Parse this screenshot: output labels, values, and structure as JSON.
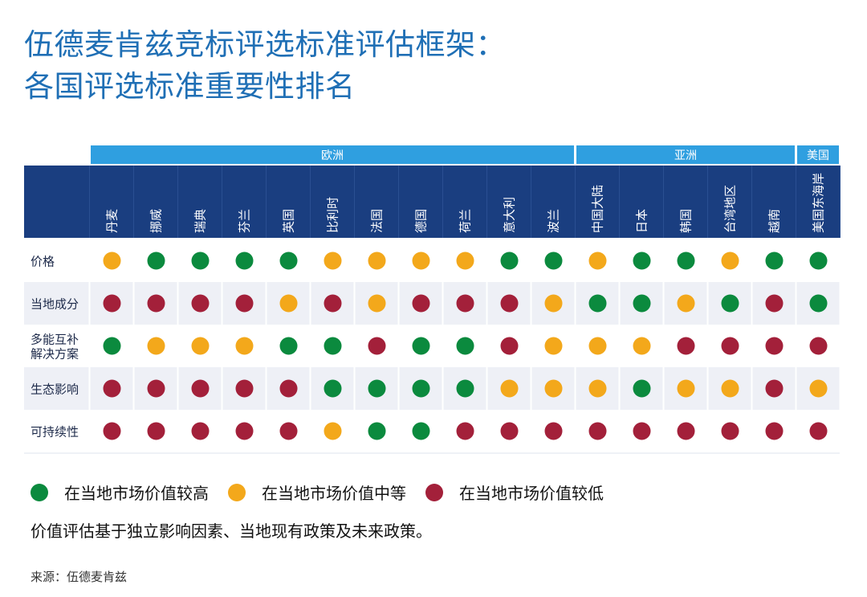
{
  "title": {
    "line1": "伍德麦肯兹竞标评选标准评估框架：",
    "line2": "各国评选标准重要性排名"
  },
  "colors": {
    "high": "#0b8a3e",
    "mid": "#f3a81b",
    "low": "#a3203a",
    "region_bar": "#2f9fe0",
    "header_bg": "#1a3e80",
    "row_band": "#eef0f6"
  },
  "regions": [
    {
      "label": "欧洲",
      "span": 11
    },
    {
      "label": "亚洲",
      "span": 5
    },
    {
      "label": "美国",
      "span": 1
    }
  ],
  "countries": [
    "丹麦",
    "挪威",
    "瑞典",
    "芬兰",
    "英国",
    "比利时",
    "法国",
    "德国",
    "荷兰",
    "意大利",
    "波兰",
    "中国大陆",
    "日本",
    "韩国",
    "台湾地区",
    "越南",
    "美国东海岸"
  ],
  "criteria": [
    {
      "label": [
        "价格"
      ],
      "values": [
        "mid",
        "high",
        "high",
        "high",
        "high",
        "mid",
        "mid",
        "mid",
        "mid",
        "high",
        "high",
        "mid",
        "high",
        "high",
        "mid",
        "high",
        "high"
      ]
    },
    {
      "label": [
        "当地成分"
      ],
      "values": [
        "low",
        "low",
        "low",
        "low",
        "mid",
        "low",
        "mid",
        "low",
        "low",
        "low",
        "mid",
        "high",
        "high",
        "mid",
        "high",
        "low",
        "high"
      ]
    },
    {
      "label": [
        "多能互补",
        "解决方案"
      ],
      "values": [
        "high",
        "mid",
        "mid",
        "mid",
        "high",
        "high",
        "low",
        "high",
        "high",
        "low",
        "mid",
        "mid",
        "mid",
        "low",
        "low",
        "low",
        "low"
      ]
    },
    {
      "label": [
        "生态影响"
      ],
      "values": [
        "low",
        "low",
        "low",
        "low",
        "low",
        "high",
        "high",
        "high",
        "high",
        "mid",
        "mid",
        "mid",
        "high",
        "mid",
        "mid",
        "low",
        "mid"
      ]
    },
    {
      "label": [
        "可持续性"
      ],
      "values": [
        "low",
        "low",
        "low",
        "low",
        "low",
        "mid",
        "high",
        "high",
        "low",
        "low",
        "low",
        "low",
        "low",
        "low",
        "low",
        "low",
        "low"
      ]
    }
  ],
  "legend": [
    {
      "key": "high",
      "label": "在当地市场价值较高"
    },
    {
      "key": "mid",
      "label": "在当地市场价值中等"
    },
    {
      "key": "low",
      "label": "在当地市场价值较低"
    }
  ],
  "note": "价值评估基于独立影响因素、当地现有政策及未来政策。",
  "source": "来源：伍德麦肯兹"
}
